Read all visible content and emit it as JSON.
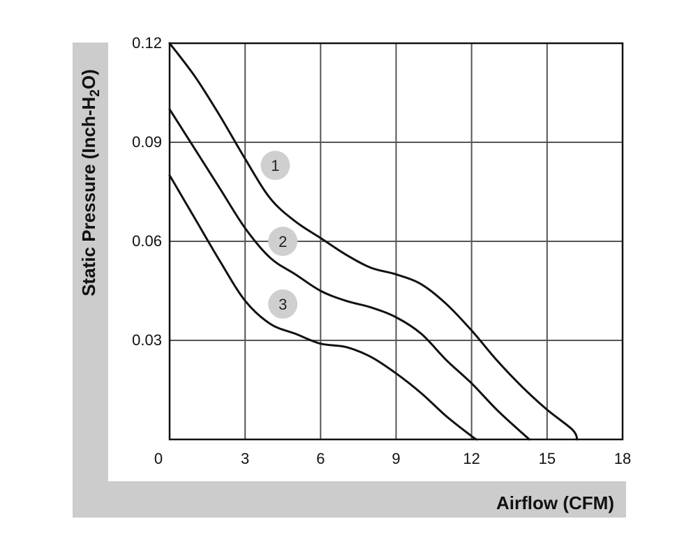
{
  "chart_data": {
    "type": "line",
    "title": "",
    "xlabel": "Airflow (CFM)",
    "ylabel": {
      "prefix": "Static Pressure (Inch-H",
      "subscript": "2",
      "suffix": "O)"
    },
    "xlim": [
      0,
      18
    ],
    "ylim": [
      0,
      0.12
    ],
    "x_ticks": [
      "0",
      "3",
      "6",
      "9",
      "12",
      "15",
      "18"
    ],
    "y_ticks": [
      "0.03",
      "0.06",
      "0.09",
      "0.12"
    ],
    "grid": true,
    "colors": {
      "frame_band": "#cccccc",
      "marker": "#cfcfcf",
      "line": "#111111",
      "grid": "#555555"
    },
    "series": [
      {
        "label": "1",
        "x": [
          0,
          1,
          2,
          3,
          4,
          5,
          6,
          7,
          8,
          9,
          10,
          11,
          12,
          13,
          14,
          15,
          16,
          16.2
        ],
        "y": [
          0.12,
          0.11,
          0.098,
          0.085,
          0.073,
          0.066,
          0.061,
          0.056,
          0.052,
          0.05,
          0.047,
          0.041,
          0.033,
          0.024,
          0.016,
          0.009,
          0.003,
          0.0
        ]
      },
      {
        "label": "2",
        "x": [
          0,
          1,
          2,
          3,
          4,
          5,
          6,
          7,
          8,
          9,
          10,
          11,
          12,
          13,
          14,
          14.3
        ],
        "y": [
          0.1,
          0.088,
          0.076,
          0.064,
          0.055,
          0.05,
          0.045,
          0.042,
          0.04,
          0.037,
          0.032,
          0.024,
          0.017,
          0.009,
          0.002,
          0.0
        ]
      },
      {
        "label": "3",
        "x": [
          0,
          1,
          2,
          3,
          4,
          5,
          6,
          7,
          8,
          9,
          10,
          11,
          12,
          12.2
        ],
        "y": [
          0.08,
          0.067,
          0.054,
          0.042,
          0.035,
          0.032,
          0.029,
          0.028,
          0.025,
          0.02,
          0.014,
          0.007,
          0.001,
          0.0
        ]
      }
    ],
    "marker_points": [
      {
        "label": "1",
        "x": 4.2,
        "y": 0.083
      },
      {
        "label": "2",
        "x": 4.5,
        "y": 0.06
      },
      {
        "label": "3",
        "x": 4.5,
        "y": 0.041
      }
    ]
  }
}
